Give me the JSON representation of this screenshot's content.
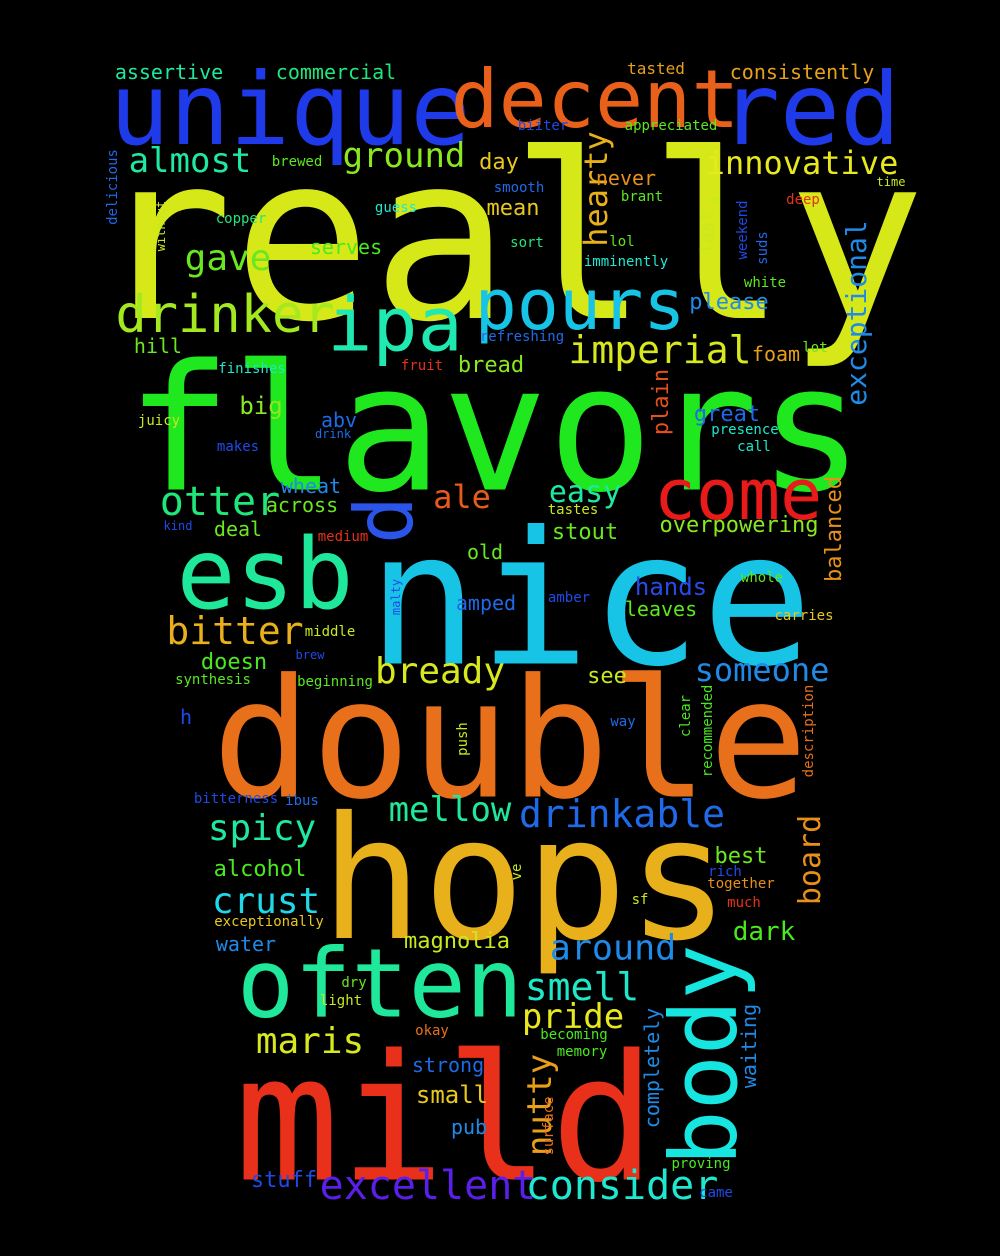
{
  "title": "Word cloud",
  "words": [
    {
      "text": "really",
      "color": "#d6e817",
      "rotated": false
    },
    {
      "text": "flavors",
      "color": "#1fe81f",
      "rotated": false
    },
    {
      "text": "nice",
      "color": "#17c4e6",
      "rotated": false
    },
    {
      "text": "double",
      "color": "#e8701a",
      "rotated": false
    },
    {
      "text": "hops",
      "color": "#e8b01a",
      "rotated": false
    },
    {
      "text": "mild",
      "color": "#e8301a",
      "rotated": false
    },
    {
      "text": "unique",
      "color": "#1f3ae8",
      "rotated": false
    },
    {
      "text": "decent",
      "color": "#e8601a",
      "rotated": false
    },
    {
      "text": "red",
      "color": "#1f3ae8",
      "rotated": false
    },
    {
      "text": "often",
      "color": "#1fe89a",
      "rotated": false
    },
    {
      "text": "esb",
      "color": "#1fe89a",
      "rotated": false
    },
    {
      "text": "body",
      "color": "#17e6e0",
      "rotated": true
    },
    {
      "text": "come",
      "color": "#e81a1a",
      "rotated": false
    },
    {
      "text": "pours",
      "color": "#17c4e6",
      "rotated": false
    },
    {
      "text": "ipa",
      "color": "#1fe8b0",
      "rotated": false
    },
    {
      "text": "d",
      "color": "#2a55e8",
      "rotated": true
    },
    {
      "text": "drinker",
      "color": "#a4e81f",
      "rotated": false
    },
    {
      "text": "imperial",
      "color": "#d8e81f",
      "rotated": false
    },
    {
      "text": "excellent",
      "color": "#5a1fe8",
      "rotated": false
    },
    {
      "text": "consider",
      "color": "#1fe8d0",
      "rotated": false
    },
    {
      "text": "drinkable",
      "color": "#1f6ae8",
      "rotated": false
    },
    {
      "text": "bready",
      "color": "#d8e81f",
      "rotated": false
    },
    {
      "text": "mellow",
      "color": "#1fe89a",
      "rotated": false
    },
    {
      "text": "smell",
      "color": "#1fe8c8",
      "rotated": false
    },
    {
      "text": "otter",
      "color": "#1fe87a",
      "rotated": false
    },
    {
      "text": "bitter",
      "color": "#e8b01a",
      "rotated": false
    },
    {
      "text": "spicy",
      "color": "#1fe8a0",
      "rotated": false
    },
    {
      "text": "crust",
      "color": "#1fd8e8",
      "rotated": false
    },
    {
      "text": "maris",
      "color": "#d8e81f",
      "rotated": false
    },
    {
      "text": "someone",
      "color": "#1f8ae8",
      "rotated": false
    },
    {
      "text": "around",
      "color": "#1f8ae8",
      "rotated": false
    },
    {
      "text": "pride",
      "color": "#e8e81f",
      "rotated": false
    },
    {
      "text": "nutty",
      "color": "#e8a01a",
      "rotated": true
    },
    {
      "text": "hearty",
      "color": "#e8b01a",
      "rotated": true
    },
    {
      "text": "innovative",
      "color": "#e8e81f",
      "rotated": false
    },
    {
      "text": "almost",
      "color": "#1fe8a0",
      "rotated": false
    },
    {
      "text": "ground",
      "color": "#8ae81f",
      "rotated": false
    },
    {
      "text": "gave",
      "color": "#6ae81f",
      "rotated": false
    },
    {
      "text": "easy",
      "color": "#1fe8a0",
      "rotated": false
    },
    {
      "text": "ale",
      "color": "#e85a1a",
      "rotated": false
    },
    {
      "text": "board",
      "color": "#e8901a",
      "rotated": true
    },
    {
      "text": "exceptional",
      "color": "#1f8ae8",
      "rotated": true
    },
    {
      "text": "assertive",
      "color": "#1fe8a0",
      "rotated": false
    },
    {
      "text": "commercial",
      "color": "#1fe87a",
      "rotated": false
    },
    {
      "text": "consistently",
      "color": "#e8a01a",
      "rotated": false
    },
    {
      "text": "tasted",
      "color": "#e8a01a",
      "rotated": false
    },
    {
      "text": "biiter",
      "color": "#1f4ae8",
      "rotated": false
    },
    {
      "text": "appreciated",
      "color": "#5ae81f",
      "rotated": false
    },
    {
      "text": "brewed",
      "color": "#5ae81f",
      "rotated": false
    },
    {
      "text": "day",
      "color": "#e8c81f",
      "rotated": false
    },
    {
      "text": "never",
      "color": "#e8901a",
      "rotated": false
    },
    {
      "text": "mean",
      "color": "#e8c81f",
      "rotated": false
    },
    {
      "text": "smooth",
      "color": "#1f6ae8",
      "rotated": false
    },
    {
      "text": "brant",
      "color": "#5ae81f",
      "rotated": false
    },
    {
      "text": "guess",
      "color": "#1fe8d0",
      "rotated": false
    },
    {
      "text": "copper",
      "color": "#1fe87a",
      "rotated": false
    },
    {
      "text": "serves",
      "color": "#4ae81f",
      "rotated": false
    },
    {
      "text": "sort",
      "color": "#1fe87a",
      "rotated": false
    },
    {
      "text": "lol",
      "color": "#5ae81f",
      "rotated": false
    },
    {
      "text": "imminently",
      "color": "#1fe8d0",
      "rotated": false
    },
    {
      "text": "please",
      "color": "#1f8ae8",
      "rotated": false
    },
    {
      "text": "white",
      "color": "#5ae81f",
      "rotated": false
    },
    {
      "text": "deep",
      "color": "#e8301a",
      "rotated": false
    },
    {
      "text": "time",
      "color": "#c8e81f",
      "rotated": false
    },
    {
      "text": "hill",
      "color": "#6ae81f",
      "rotated": false
    },
    {
      "text": "refreshing",
      "color": "#1f6ae8",
      "rotated": false
    },
    {
      "text": "foam",
      "color": "#e8a01a",
      "rotated": false
    },
    {
      "text": "lot",
      "color": "#6ae81f",
      "rotated": false
    },
    {
      "text": "finishes",
      "color": "#1fe8c8",
      "rotated": false
    },
    {
      "text": "fruit",
      "color": "#e8301a",
      "rotated": false
    },
    {
      "text": "bread",
      "color": "#8ae81f",
      "rotated": false
    },
    {
      "text": "big",
      "color": "#8ae81f",
      "rotated": false
    },
    {
      "text": "juicy",
      "color": "#c8e81f",
      "rotated": false
    },
    {
      "text": "abv",
      "color": "#1f6ae8",
      "rotated": false
    },
    {
      "text": "drink",
      "color": "#1f6ae8",
      "rotated": false
    },
    {
      "text": "makes",
      "color": "#1f4ae8",
      "rotated": false
    },
    {
      "text": "great",
      "color": "#1f6ae8",
      "rotated": false
    },
    {
      "text": "presence",
      "color": "#1fe8c8",
      "rotated": false
    },
    {
      "text": "call",
      "color": "#1fe8c8",
      "rotated": false
    },
    {
      "text": "wheat",
      "color": "#1f8ae8",
      "rotated": false
    },
    {
      "text": "across",
      "color": "#6ae81f",
      "rotated": false
    },
    {
      "text": "deal",
      "color": "#6ae81f",
      "rotated": false
    },
    {
      "text": "kind",
      "color": "#1f4ae8",
      "rotated": false
    },
    {
      "text": "medium",
      "color": "#e8301a",
      "rotated": false
    },
    {
      "text": "tastes",
      "color": "#c8e81f",
      "rotated": false
    },
    {
      "text": "stout",
      "color": "#6ae81f",
      "rotated": false
    },
    {
      "text": "old",
      "color": "#6ae81f",
      "rotated": false
    },
    {
      "text": "overpowering",
      "color": "#8ae81f",
      "rotated": false
    },
    {
      "text": "hands",
      "color": "#2a4ae8",
      "rotated": false
    },
    {
      "text": "whole",
      "color": "#5ae81f",
      "rotated": false
    },
    {
      "text": "amped",
      "color": "#1f6ae8",
      "rotated": false
    },
    {
      "text": "amber",
      "color": "#1f4ae8",
      "rotated": false
    },
    {
      "text": "leaves",
      "color": "#5ae81f",
      "rotated": false
    },
    {
      "text": "carries",
      "color": "#e8c81f",
      "rotated": false
    },
    {
      "text": "middle",
      "color": "#c8e81f",
      "rotated": false
    },
    {
      "text": "brew",
      "color": "#1f4ae8",
      "rotated": false
    },
    {
      "text": "doesn",
      "color": "#4ae81f",
      "rotated": false
    },
    {
      "text": "synthesis",
      "color": "#5ae81f",
      "rotated": false
    },
    {
      "text": "beginning",
      "color": "#5ae81f",
      "rotated": false
    },
    {
      "text": "see",
      "color": "#c8e81f",
      "rotated": false
    },
    {
      "text": "h",
      "color": "#1f4ae8",
      "rotated": false
    },
    {
      "text": "way",
      "color": "#1f6ae8",
      "rotated": false
    },
    {
      "text": "bitterness",
      "color": "#1f4ae8",
      "rotated": false
    },
    {
      "text": "ibus",
      "color": "#1f6ae8",
      "rotated": false
    },
    {
      "text": "best",
      "color": "#6ae81f",
      "rotated": false
    },
    {
      "text": "alcohol",
      "color": "#4ae81f",
      "rotated": false
    },
    {
      "text": "rich",
      "color": "#1f4ae8",
      "rotated": false
    },
    {
      "text": "together",
      "color": "#e8901a",
      "rotated": false
    },
    {
      "text": "much",
      "color": "#e8301a",
      "rotated": false
    },
    {
      "text": "sf",
      "color": "#c8e81f",
      "rotated": false
    },
    {
      "text": "exceptionally",
      "color": "#e8c81f",
      "rotated": false
    },
    {
      "text": "water",
      "color": "#1f8ae8",
      "rotated": false
    },
    {
      "text": "magnolia",
      "color": "#c8e81f",
      "rotated": false
    },
    {
      "text": "dark",
      "color": "#4ae81f",
      "rotated": false
    },
    {
      "text": "dry",
      "color": "#6ae81f",
      "rotated": false
    },
    {
      "text": "light",
      "color": "#c8e81f",
      "rotated": false
    },
    {
      "text": "okay",
      "color": "#e8701a",
      "rotated": false
    },
    {
      "text": "becoming",
      "color": "#4ae81f",
      "rotated": false
    },
    {
      "text": "memory",
      "color": "#4ae81f",
      "rotated": false
    },
    {
      "text": "strong",
      "color": "#1f6ae8",
      "rotated": false
    },
    {
      "text": "small",
      "color": "#e8c81f",
      "rotated": false
    },
    {
      "text": "pub",
      "color": "#1f8ae8",
      "rotated": false
    },
    {
      "text": "stuff",
      "color": "#1f4ae8",
      "rotated": false
    },
    {
      "text": "proving",
      "color": "#4ae81f",
      "rotated": false
    },
    {
      "text": "came",
      "color": "#1f4ae8",
      "rotated": false
    },
    {
      "text": "ve",
      "color": "#c8e81f",
      "rotated": true
    },
    {
      "text": "delicious",
      "color": "#1f6ae8",
      "rotated": true
    },
    {
      "text": "without",
      "color": "#c8e81f",
      "rotated": true
    },
    {
      "text": "malty",
      "color": "#1f4ae8",
      "rotated": true
    },
    {
      "text": "weekend",
      "color": "#1f4ae8",
      "rotated": true
    },
    {
      "text": "suds",
      "color": "#1f6ae8",
      "rotated": true
    },
    {
      "text": "last",
      "color": "#c8e81f",
      "rotated": true
    },
    {
      "text": "m",
      "color": "#c8e81f",
      "rotated": false
    },
    {
      "text": "plain",
      "color": "#e8501a",
      "rotated": true
    },
    {
      "text": "balanced",
      "color": "#e8901a",
      "rotated": true
    },
    {
      "text": "push",
      "color": "#c8e81f",
      "rotated": true
    },
    {
      "text": "clear",
      "color": "#4ae81f",
      "rotated": true
    },
    {
      "text": "recommended",
      "color": "#4ae81f",
      "rotated": true
    },
    {
      "text": "description",
      "color": "#e8701a",
      "rotated": true
    },
    {
      "text": "waiting",
      "color": "#1f8ae8",
      "rotated": true
    },
    {
      "text": "completely",
      "color": "#1f8ae8",
      "rotated": true
    },
    {
      "text": "surface",
      "color": "#e8701a",
      "rotated": true
    }
  ]
}
